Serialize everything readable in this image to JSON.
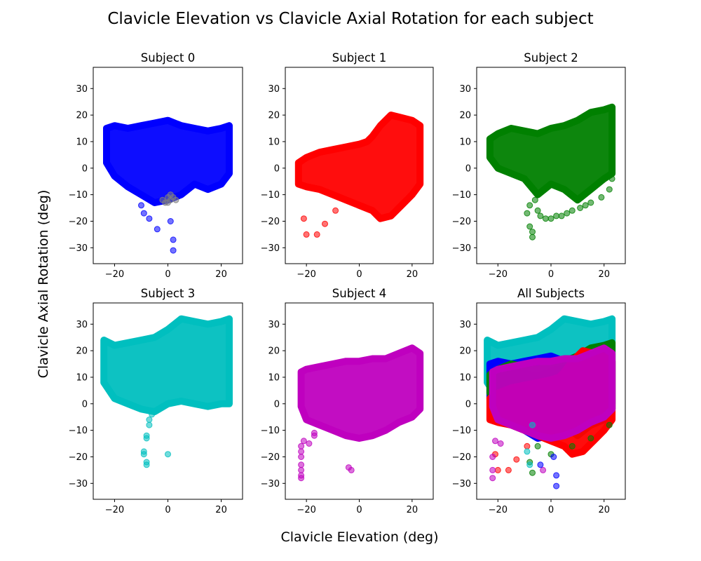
{
  "figure": {
    "title": "Clavicle Elevation vs Clavicle Axial Rotation for each subject",
    "xlabel": "Clavicle Elevation (deg)",
    "ylabel": "Clavicle Axial Rotation (deg)"
  },
  "colors": {
    "subject0": "#0000ff",
    "subject1": "#ff0000",
    "subject2": "#008000",
    "subject3": "#00bfbf",
    "subject4": "#bf00bf",
    "outlier_patch": "#808080"
  },
  "chart_data": [
    {
      "type": "scatter",
      "title": "Subject 0",
      "color": "#0000ff",
      "xlim": [
        -28,
        28
      ],
      "ylim": [
        -36,
        38
      ],
      "xticks": [
        -20,
        0,
        20
      ],
      "yticks": [
        -30,
        -20,
        -10,
        0,
        10,
        20,
        30
      ],
      "grid": false,
      "clusters": [
        {
          "x": [
            -23,
            -20,
            -15,
            -10,
            -5,
            0,
            5,
            10,
            15,
            20,
            23,
            23,
            20,
            15,
            10,
            5,
            0,
            -5,
            -10,
            -15,
            -20,
            -23
          ],
          "y": [
            15,
            16,
            15,
            16,
            17,
            18,
            16,
            15,
            14,
            15,
            16,
            -2,
            -6,
            -8,
            -6,
            -10,
            -12,
            -13,
            -10,
            -7,
            -3,
            2
          ]
        }
      ],
      "points": [
        {
          "x": 0,
          "y": -11,
          "c": "#808080"
        },
        {
          "x": 1,
          "y": -12,
          "c": "#808080"
        },
        {
          "x": -1,
          "y": -13,
          "c": "#808080"
        },
        {
          "x": 2,
          "y": -11,
          "c": "#808080"
        },
        {
          "x": -2,
          "y": -12,
          "c": "#808080"
        },
        {
          "x": 0,
          "y": -13,
          "c": "#808080"
        },
        {
          "x": 1,
          "y": -10,
          "c": "#808080"
        },
        {
          "x": 3,
          "y": -12,
          "c": "#808080"
        },
        {
          "x": -10,
          "y": -14
        },
        {
          "x": -9,
          "y": -17
        },
        {
          "x": -7,
          "y": -19
        },
        {
          "x": -4,
          "y": -23
        },
        {
          "x": 1,
          "y": -20
        },
        {
          "x": 2,
          "y": -27
        },
        {
          "x": 2,
          "y": -31
        }
      ]
    },
    {
      "type": "scatter",
      "title": "Subject 1",
      "color": "#ff0000",
      "xlim": [
        -28,
        28
      ],
      "ylim": [
        -36,
        38
      ],
      "xticks": [
        -20,
        0,
        20
      ],
      "yticks": [
        -30,
        -20,
        -10,
        0,
        10,
        20,
        30
      ],
      "grid": false,
      "clusters": [
        {
          "x": [
            -23,
            -20,
            -15,
            -10,
            -5,
            0,
            3,
            5,
            8,
            12,
            16,
            20,
            23,
            23,
            20,
            16,
            12,
            8,
            5,
            0,
            -5,
            -10,
            -15,
            -20,
            -23
          ],
          "y": [
            2,
            4,
            6,
            7,
            8,
            9,
            10,
            12,
            16,
            20,
            19,
            18,
            16,
            -6,
            -10,
            -14,
            -18,
            -19,
            -16,
            -14,
            -12,
            -10,
            -8,
            -7,
            -6
          ]
        }
      ],
      "points": [
        {
          "x": -21,
          "y": -19
        },
        {
          "x": -20,
          "y": -25
        },
        {
          "x": -16,
          "y": -25
        },
        {
          "x": -13,
          "y": -21
        },
        {
          "x": -9,
          "y": -16
        }
      ]
    },
    {
      "type": "scatter",
      "title": "Subject 2",
      "color": "#008000",
      "xlim": [
        -28,
        28
      ],
      "ylim": [
        -36,
        38
      ],
      "xticks": [
        -20,
        0,
        20
      ],
      "yticks": [
        -30,
        -20,
        -10,
        0,
        10,
        20,
        30
      ],
      "grid": false,
      "clusters": [
        {
          "x": [
            -23,
            -20,
            -15,
            -10,
            -5,
            0,
            5,
            10,
            15,
            20,
            23,
            23,
            20,
            15,
            10,
            5,
            0,
            -5,
            -10,
            -15,
            -20,
            -23
          ],
          "y": [
            11,
            13,
            15,
            14,
            13,
            15,
            16,
            18,
            21,
            22,
            23,
            -2,
            -4,
            -8,
            -12,
            -8,
            -6,
            -10,
            -4,
            -2,
            0,
            4
          ]
        }
      ],
      "points": [
        {
          "x": -7,
          "y": -26
        },
        {
          "x": -8,
          "y": -22
        },
        {
          "x": -7,
          "y": -24
        },
        {
          "x": -9,
          "y": -17
        },
        {
          "x": -8,
          "y": -14
        },
        {
          "x": -6,
          "y": -12
        },
        {
          "x": -5,
          "y": -16
        },
        {
          "x": -4,
          "y": -18
        },
        {
          "x": -2,
          "y": -19
        },
        {
          "x": 0,
          "y": -19
        },
        {
          "x": 2,
          "y": -18
        },
        {
          "x": 4,
          "y": -18
        },
        {
          "x": 6,
          "y": -17
        },
        {
          "x": 8,
          "y": -16
        },
        {
          "x": 11,
          "y": -15
        },
        {
          "x": 13,
          "y": -14
        },
        {
          "x": 15,
          "y": -13
        },
        {
          "x": 19,
          "y": -11
        },
        {
          "x": 22,
          "y": -8
        },
        {
          "x": 23,
          "y": -4
        }
      ]
    },
    {
      "type": "scatter",
      "title": "Subject 3",
      "color": "#00bfbf",
      "xlim": [
        -28,
        28
      ],
      "ylim": [
        -36,
        38
      ],
      "xticks": [
        -20,
        0,
        20
      ],
      "yticks": [
        -30,
        -20,
        -10,
        0,
        10,
        20,
        30
      ],
      "grid": false,
      "clusters": [
        {
          "x": [
            -24,
            -20,
            -15,
            -10,
            -5,
            0,
            5,
            10,
            15,
            20,
            23,
            23,
            20,
            15,
            10,
            5,
            0,
            -5,
            -10,
            -15,
            -20,
            -24
          ],
          "y": [
            24,
            22,
            23,
            24,
            25,
            28,
            32,
            31,
            30,
            31,
            32,
            0,
            0,
            -1,
            0,
            1,
            0,
            -3,
            -2,
            0,
            2,
            8
          ]
        }
      ],
      "points": [
        {
          "x": -8,
          "y": -23
        },
        {
          "x": -8,
          "y": -22
        },
        {
          "x": -9,
          "y": -19
        },
        {
          "x": -9,
          "y": -18
        },
        {
          "x": -8,
          "y": -13
        },
        {
          "x": -8,
          "y": -12
        },
        {
          "x": -7,
          "y": -8
        },
        {
          "x": -7,
          "y": -6
        },
        {
          "x": -6,
          "y": -4
        },
        {
          "x": 0,
          "y": -19
        }
      ]
    },
    {
      "type": "scatter",
      "title": "Subject 4",
      "color": "#bf00bf",
      "xlim": [
        -28,
        28
      ],
      "ylim": [
        -36,
        38
      ],
      "xticks": [
        -20,
        0,
        20
      ],
      "yticks": [
        -30,
        -20,
        -10,
        0,
        10,
        20,
        30
      ],
      "grid": false,
      "clusters": [
        {
          "x": [
            -22,
            -20,
            -15,
            -10,
            -5,
            0,
            5,
            10,
            15,
            20,
            23,
            23,
            20,
            15,
            10,
            5,
            0,
            -5,
            -10,
            -15,
            -20,
            -22
          ],
          "y": [
            12,
            13,
            14,
            15,
            16,
            16,
            17,
            17,
            19,
            21,
            19,
            -2,
            -5,
            -7,
            -10,
            -12,
            -13,
            -12,
            -10,
            -8,
            -6,
            -1
          ]
        }
      ],
      "points": [
        {
          "x": -22,
          "y": -28
        },
        {
          "x": -22,
          "y": -27
        },
        {
          "x": -22,
          "y": -25
        },
        {
          "x": -22,
          "y": -23
        },
        {
          "x": -22,
          "y": -20
        },
        {
          "x": -22,
          "y": -18
        },
        {
          "x": -22,
          "y": -16
        },
        {
          "x": -21,
          "y": -14
        },
        {
          "x": -19,
          "y": -15
        },
        {
          "x": -17,
          "y": -12
        },
        {
          "x": -17,
          "y": -11
        },
        {
          "x": -4,
          "y": -24
        },
        {
          "x": -3,
          "y": -25
        }
      ]
    },
    {
      "type": "scatter",
      "title": "All Subjects",
      "xlim": [
        -28,
        28
      ],
      "ylim": [
        -36,
        38
      ],
      "xticks": [
        -20,
        0,
        20
      ],
      "yticks": [
        -30,
        -20,
        -10,
        0,
        10,
        20,
        30
      ],
      "grid": false,
      "clusters": [
        {
          "color": "#00bfbf",
          "x": [
            -24,
            -20,
            -15,
            -10,
            -5,
            0,
            5,
            10,
            15,
            20,
            23,
            23,
            20,
            15,
            10,
            5,
            0,
            -5,
            -10,
            -15,
            -20,
            -24
          ],
          "y": [
            24,
            22,
            23,
            24,
            25,
            28,
            32,
            31,
            30,
            31,
            32,
            0,
            0,
            -1,
            0,
            1,
            0,
            -3,
            -2,
            0,
            2,
            8
          ]
        },
        {
          "color": "#0000ff",
          "x": [
            -23,
            -20,
            -15,
            -10,
            -5,
            0,
            5,
            10,
            15,
            20,
            23,
            23,
            20,
            15,
            10,
            5,
            0,
            -5,
            -10,
            -15,
            -20,
            -23
          ],
          "y": [
            15,
            16,
            15,
            16,
            17,
            18,
            16,
            15,
            14,
            15,
            16,
            -2,
            -6,
            -8,
            -6,
            -10,
            -12,
            -13,
            -10,
            -7,
            -3,
            2
          ]
        },
        {
          "color": "#008000",
          "x": [
            -23,
            -20,
            -15,
            -10,
            -5,
            0,
            5,
            10,
            15,
            20,
            23,
            23,
            20,
            15,
            10,
            5,
            0,
            -5,
            -10,
            -15,
            -20,
            -23
          ],
          "y": [
            11,
            13,
            15,
            14,
            13,
            15,
            16,
            18,
            21,
            22,
            23,
            -2,
            -4,
            -8,
            -12,
            -8,
            -6,
            -10,
            -4,
            -2,
            0,
            4
          ]
        },
        {
          "color": "#ff0000",
          "x": [
            -23,
            -20,
            -15,
            -10,
            -5,
            0,
            3,
            5,
            8,
            12,
            16,
            20,
            23,
            23,
            20,
            16,
            12,
            8,
            5,
            0,
            -5,
            -10,
            -15,
            -20,
            -23
          ],
          "y": [
            2,
            4,
            6,
            7,
            8,
            9,
            10,
            12,
            16,
            20,
            19,
            18,
            16,
            -6,
            -10,
            -14,
            -18,
            -19,
            -16,
            -14,
            -12,
            -10,
            -8,
            -7,
            -6
          ]
        },
        {
          "color": "#bf00bf",
          "x": [
            -22,
            -20,
            -15,
            -10,
            -5,
            0,
            5,
            10,
            15,
            20,
            23,
            23,
            20,
            15,
            10,
            5,
            0,
            -5,
            -10,
            -15,
            -20,
            -22
          ],
          "y": [
            12,
            13,
            14,
            15,
            16,
            16,
            17,
            17,
            19,
            21,
            19,
            -2,
            -5,
            -7,
            -10,
            -12,
            -13,
            -12,
            -10,
            -8,
            -6,
            -1
          ]
        }
      ],
      "points": [
        {
          "x": -21,
          "y": -19,
          "c": "#ff0000"
        },
        {
          "x": -20,
          "y": -25,
          "c": "#ff0000"
        },
        {
          "x": -16,
          "y": -25,
          "c": "#ff0000"
        },
        {
          "x": -13,
          "y": -21,
          "c": "#ff0000"
        },
        {
          "x": -9,
          "y": -16,
          "c": "#ff0000"
        },
        {
          "x": -7,
          "y": -26,
          "c": "#008000"
        },
        {
          "x": -8,
          "y": -22,
          "c": "#008000"
        },
        {
          "x": -5,
          "y": -16,
          "c": "#008000"
        },
        {
          "x": 0,
          "y": -19,
          "c": "#008000"
        },
        {
          "x": 8,
          "y": -16,
          "c": "#008000"
        },
        {
          "x": 15,
          "y": -13,
          "c": "#008000"
        },
        {
          "x": 22,
          "y": -8,
          "c": "#008000"
        },
        {
          "x": -8,
          "y": -23,
          "c": "#00bfbf"
        },
        {
          "x": -9,
          "y": -18,
          "c": "#00bfbf"
        },
        {
          "x": -7,
          "y": -8,
          "c": "#00bfbf"
        },
        {
          "x": -22,
          "y": -28,
          "c": "#bf00bf"
        },
        {
          "x": -22,
          "y": -25,
          "c": "#bf00bf"
        },
        {
          "x": -22,
          "y": -20,
          "c": "#bf00bf"
        },
        {
          "x": -21,
          "y": -14,
          "c": "#bf00bf"
        },
        {
          "x": -19,
          "y": -15,
          "c": "#bf00bf"
        },
        {
          "x": -3,
          "y": -25,
          "c": "#bf00bf"
        },
        {
          "x": -4,
          "y": -23,
          "c": "#0000ff"
        },
        {
          "x": 1,
          "y": -20,
          "c": "#0000ff"
        },
        {
          "x": 2,
          "y": -27,
          "c": "#0000ff"
        },
        {
          "x": 2,
          "y": -31,
          "c": "#0000ff"
        }
      ]
    }
  ]
}
